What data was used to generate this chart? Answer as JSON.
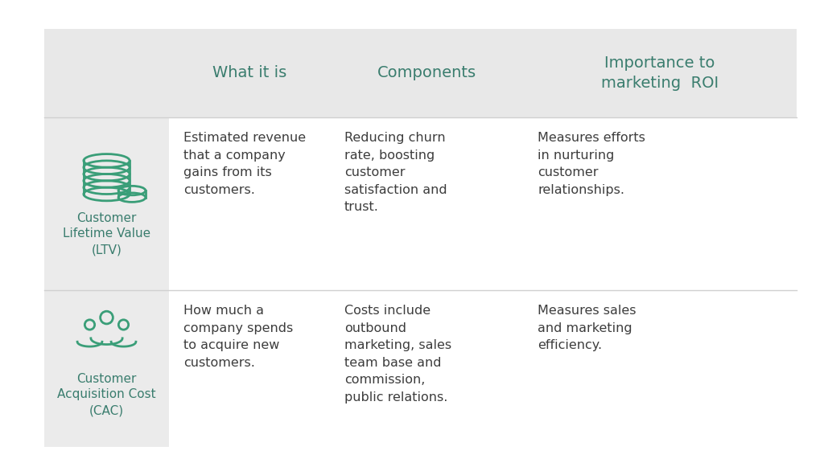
{
  "bg_color": "#ffffff",
  "header_bg": "#e8e8e8",
  "left_col_bg": "#ebebeb",
  "header_text_color": "#3a7d6e",
  "body_text_color": "#3d3d3d",
  "label_text_color": "#3a7d6e",
  "green_color": "#3a9e78",
  "divider_color": "#d0d0d0",
  "headers": [
    "What it is",
    "Components",
    "Importance to\nmarketing  ROI"
  ],
  "row1": {
    "label": "Customer\nLifetime Value\n(LTV)",
    "what": "Estimated revenue\nthat a company\ngains from its\ncustomers.",
    "components": "Reducing churn\nrate, boosting\ncustomer\nsatisfaction and\ntrust.",
    "importance": "Measures efforts\nin nurturing\ncustomer\nrelationships."
  },
  "row2": {
    "label": "Customer\nAcquisition Cost\n(CAC)",
    "what": "How much a\ncompany spends\nto acquire new\ncustomers.",
    "components": "Costs include\noutbound\nmarketing, sales\nteam base and\ncommission,\npublic relations.",
    "importance": "Measures sales\nand marketing\nefficiency."
  }
}
